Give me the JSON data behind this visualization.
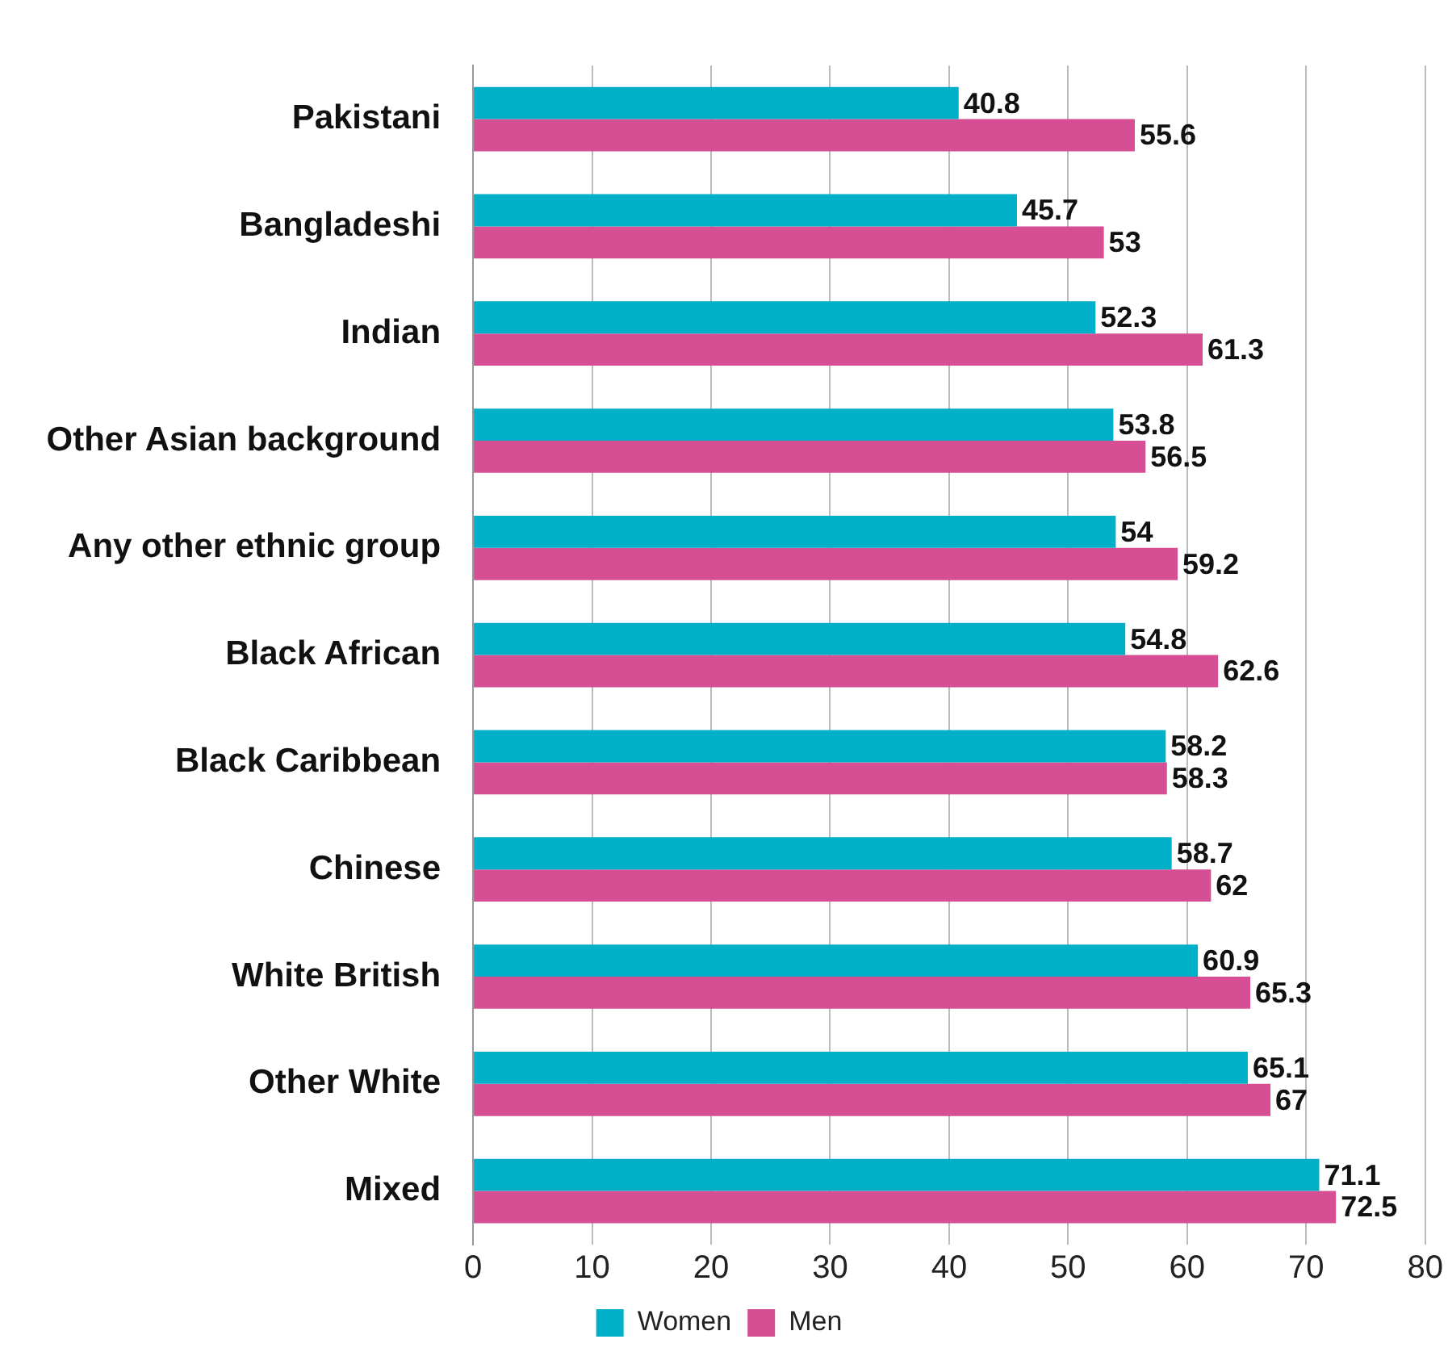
{
  "chart_data": {
    "type": "bar",
    "orientation": "horizontal",
    "categories": [
      "Pakistani",
      "Bangladeshi",
      "Indian",
      "Other Asian background",
      "Any other ethnic group",
      "Black African",
      "Black Caribbean",
      "Chinese",
      "White British",
      "Other White",
      "Mixed"
    ],
    "series": [
      {
        "name": "Women",
        "color": "#00afc8",
        "values": [
          40.8,
          45.7,
          52.3,
          53.8,
          54,
          54.8,
          58.2,
          58.7,
          60.9,
          65.1,
          71.1
        ]
      },
      {
        "name": "Men",
        "color": "#d64f95",
        "values": [
          55.6,
          53,
          61.3,
          56.5,
          59.2,
          62.6,
          58.3,
          62,
          65.3,
          67,
          72.5
        ]
      }
    ],
    "xlim": [
      0,
      80
    ],
    "xticks": [
      0,
      10,
      20,
      30,
      40,
      50,
      60,
      70,
      80
    ],
    "grid": "x",
    "legend": "bottom",
    "data_labels": true
  }
}
